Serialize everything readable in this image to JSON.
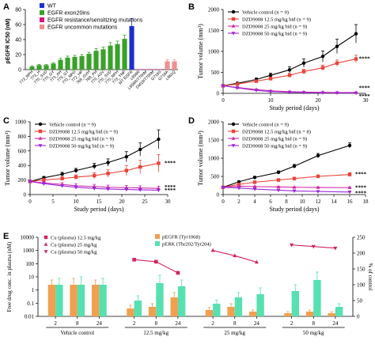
{
  "panel_labels": [
    "A",
    "B",
    "C",
    "D",
    "E"
  ],
  "colors": {
    "wt": "#1f2ecf",
    "exon20": "#3aa12a",
    "resistance": "#e0127a",
    "uncommon": "#f08f8f",
    "vehicle": "#000000",
    "dose12": "#e8443a",
    "dose25": "#d42aa8",
    "dose50": "#9b2ad6",
    "cu_plasma": "#f0a050",
    "perk": "#57e0b0",
    "pegfr_line": "#d0245a"
  },
  "chart_data": [
    {
      "panel": "A",
      "type": "bar",
      "ylabel": "pEGFR IC50 (nM)",
      "ylim": [
        0,
        80
      ],
      "yticks": [
        0,
        20,
        40,
        60,
        80
      ],
      "legend_position": "top-left",
      "legend": [
        {
          "name": "WT",
          "color": "#1f2ecf"
        },
        {
          "name": "EGFR exon20ins",
          "color": "#3aa12a"
        },
        {
          "name": "EGFR resistance/sensitizing mutations",
          "color": "#e0127a"
        },
        {
          "name": "EGFR uncommon mutations",
          "color": "#f08f8f"
        }
      ],
      "categories": [
        "773_NPH",
        "773_H",
        "770_SVD",
        "770_GY",
        "773_AH",
        "775_GT",
        "770_NPG",
        "772_HP",
        "769_GVH",
        "768_PH",
        "770_ASV",
        "770_SVD",
        "770_NPH",
        "773_YNP",
        "WT EGFR",
        "L858R",
        "L858R/T790M",
        "Del19/T790M",
        "G719S",
        "G719A",
        "L861Q"
      ],
      "values": [
        4,
        6,
        6,
        8,
        13,
        16,
        17,
        18,
        21,
        25,
        27,
        32,
        34,
        41,
        58,
        0.4,
        0.4,
        0.4,
        0.4,
        11,
        11
      ],
      "errors": [
        1,
        1,
        1,
        1,
        2,
        2,
        2,
        2,
        2,
        3,
        3,
        4,
        4,
        5,
        10,
        0.1,
        0.1,
        0.1,
        0.1,
        2,
        2
      ],
      "groups": [
        "exon20",
        "exon20",
        "exon20",
        "exon20",
        "exon20",
        "exon20",
        "exon20",
        "exon20",
        "exon20",
        "exon20",
        "exon20",
        "exon20",
        "exon20",
        "exon20",
        "wt",
        "resistance",
        "resistance",
        "resistance",
        "resistance",
        "uncommon",
        "uncommon"
      ]
    },
    {
      "panel": "B",
      "type": "line",
      "xlabel": "Study period (days)",
      "ylabel": "Tumor volume (mm³)",
      "xlim": [
        0,
        30
      ],
      "ylim": [
        0,
        2000
      ],
      "xticks": [
        0,
        10,
        20,
        30
      ],
      "yticks": [
        0,
        500,
        1000,
        1500,
        2000
      ],
      "legend_position": "top-left",
      "x": [
        0,
        3,
        7,
        10,
        14,
        17,
        21,
        24,
        28
      ],
      "series": [
        {
          "name": "Vehicle control   (n = 9)",
          "values": [
            180,
            240,
            330,
            430,
            560,
            720,
            880,
            1120,
            1420
          ],
          "errors": [
            15,
            25,
            35,
            50,
            70,
            100,
            130,
            170,
            220
          ],
          "marker": "circle",
          "color": "#000000"
        },
        {
          "name": "DZD9008 12.5 mg/kg bid (n = 9)",
          "values": [
            180,
            220,
            290,
            350,
            430,
            520,
            610,
            720,
            820
          ],
          "errors": [
            15,
            20,
            25,
            35,
            45,
            55,
            65,
            75,
            90
          ],
          "marker": "square",
          "color": "#e8443a"
        },
        {
          "name": "DZD9008 25 mg/kg bid (n = 9)",
          "values": [
            180,
            140,
            90,
            60,
            40,
            30,
            25,
            20,
            20
          ],
          "errors": [
            15,
            15,
            12,
            10,
            8,
            6,
            5,
            5,
            5
          ],
          "marker": "triangle-up",
          "color": "#d42aa8"
        },
        {
          "name": "DZD9008 50 mg/kg bid (n = 9)",
          "values": [
            180,
            130,
            70,
            40,
            25,
            18,
            12,
            10,
            8
          ],
          "errors": [
            15,
            15,
            10,
            8,
            6,
            5,
            4,
            3,
            3
          ],
          "marker": "triangle-down",
          "color": "#9b2ad6"
        }
      ],
      "annotations": [
        {
          "text": "****",
          "x": 28.6,
          "y": 820
        },
        {
          "text": "****",
          "x": 28.6,
          "y": 120
        },
        {
          "text": "****",
          "x": 28.6,
          "y": -100
        }
      ]
    },
    {
      "panel": "C",
      "type": "line",
      "xlabel": "Study period (days)",
      "ylabel": "Tumor volume (mm³)",
      "xlim": [
        0,
        30
      ],
      "ylim": [
        0,
        1000
      ],
      "xticks": [
        0,
        5,
        10,
        15,
        20,
        25,
        30
      ],
      "yticks": [
        0,
        200,
        400,
        600,
        800,
        1000
      ],
      "legend_position": "top-left",
      "x": [
        0,
        3,
        7,
        10,
        14,
        17,
        21,
        24,
        28
      ],
      "series": [
        {
          "name": "Vehicle control   (n = 9)",
          "values": [
            180,
            230,
            280,
            330,
            390,
            440,
            520,
            620,
            760
          ],
          "errors": [
            15,
            20,
            25,
            30,
            40,
            50,
            70,
            90,
            130
          ],
          "marker": "circle",
          "color": "#000000"
        },
        {
          "name": "DZD9008 12.5 mg/kg bid (n = 9)",
          "values": [
            180,
            200,
            220,
            240,
            260,
            290,
            330,
            380,
            430
          ],
          "errors": [
            15,
            20,
            25,
            30,
            40,
            50,
            70,
            90,
            120
          ],
          "marker": "square",
          "color": "#e8443a"
        },
        {
          "name": "DZD9008 25 mg/kg bid (n = 9)",
          "values": [
            180,
            160,
            140,
            120,
            110,
            100,
            95,
            90,
            85
          ],
          "errors": [
            15,
            20,
            25,
            30,
            30,
            30,
            30,
            30,
            30
          ],
          "marker": "triangle-up",
          "color": "#d42aa8"
        },
        {
          "name": "DZD9008 50 mg/kg bid (n = 9)",
          "values": [
            180,
            150,
            120,
            100,
            85,
            75,
            70,
            65,
            60
          ],
          "errors": [
            15,
            20,
            20,
            20,
            20,
            20,
            20,
            20,
            20
          ],
          "marker": "triangle-down",
          "color": "#9b2ad6"
        }
      ],
      "annotations": [
        {
          "text": "****",
          "x": 29.3,
          "y": 430
        },
        {
          "text": "****",
          "x": 29.3,
          "y": 100
        },
        {
          "text": "****",
          "x": 29.3,
          "y": 55
        }
      ]
    },
    {
      "panel": "D",
      "type": "line",
      "xlabel": "Study period (days)",
      "ylabel": "Tumor volume (mm³)",
      "xlim": [
        0,
        18
      ],
      "ylim": [
        0,
        2000
      ],
      "xticks": [
        0,
        2,
        4,
        6,
        8,
        10,
        12,
        14,
        16,
        18
      ],
      "yticks": [
        0,
        500,
        1000,
        1500,
        2000
      ],
      "legend_position": "top-left",
      "x": [
        0,
        2,
        4,
        7,
        9,
        12,
        16
      ],
      "series": [
        {
          "name": "Vehicle control   (n = 9)",
          "values": [
            200,
            350,
            470,
            610,
            780,
            1070,
            1350
          ],
          "errors": [
            15,
            25,
            30,
            40,
            50,
            60,
            70
          ],
          "marker": "circle",
          "color": "#000000"
        },
        {
          "name": "DZD9008 12.5 mg/kg bid (n = 8)",
          "values": [
            200,
            280,
            340,
            400,
            440,
            500,
            550
          ],
          "errors": [
            15,
            20,
            25,
            30,
            35,
            40,
            50
          ],
          "marker": "square",
          "color": "#e8443a"
        },
        {
          "name": "DZD9008 25 mg/kg bid (n = 9)",
          "values": [
            200,
            230,
            220,
            210,
            200,
            195,
            190
          ],
          "errors": [
            15,
            15,
            15,
            15,
            15,
            15,
            15
          ],
          "marker": "triangle-up",
          "color": "#d42aa8"
        },
        {
          "name": "DZD9008 50 mg/kg bid (n = 9)",
          "values": [
            200,
            180,
            150,
            120,
            100,
            85,
            70
          ],
          "errors": [
            15,
            15,
            12,
            10,
            10,
            10,
            10
          ],
          "marker": "triangle-down",
          "color": "#9b2ad6"
        }
      ],
      "annotations": [
        {
          "text": "****",
          "x": 16.7,
          "y": 550
        },
        {
          "text": "****",
          "x": 16.7,
          "y": 190
        },
        {
          "text": "****",
          "x": 16.7,
          "y": 30
        }
      ]
    },
    {
      "panel": "E",
      "type": "bar",
      "ylabel": "Free drug conc. in plasma (nM)",
      "ylabel_right": "% of control",
      "y_scale": "log",
      "ylim": [
        0.01,
        10000
      ],
      "yticks": [
        0.01,
        0.1,
        1,
        10,
        100,
        1000,
        10000
      ],
      "ytick_labels": [
        "0.01",
        "0.1",
        "1",
        "10",
        "100",
        "1000",
        "10000"
      ],
      "ylim_right": [
        0,
        250
      ],
      "yticks_right": [
        0,
        50,
        100,
        150,
        200,
        250
      ],
      "legend_position": "top-left",
      "legend": [
        {
          "name": "Cu (plasma) 12.5 mg/kg",
          "color": "#f0a050"
        },
        {
          "name": "Cu (plasma) 25 mg/kg",
          "color": "#f0a050"
        },
        {
          "name": "Cu (plasma) 50 mg/kg",
          "color": "#f0a050"
        },
        {
          "name": "pEGFR (Tyr1068)",
          "color": "#f0a050"
        },
        {
          "name": "pERK (Thr202/Tyr204)",
          "color": "#57e0b0"
        }
      ],
      "groups": [
        "Vehicle control",
        "12.5 mg/kg",
        "25 mg/kg",
        "50 mg/kg"
      ],
      "timepoints": [
        "2",
        "8",
        "24"
      ],
      "series": [
        {
          "name": "pEGFR (Tyr1068)",
          "axis": "right",
          "values": [
            [
              100,
              100,
              100
            ],
            [
              25,
              30,
              60
            ],
            [
              20,
              30,
              15
            ],
            [
              10,
              15,
              10
            ]
          ],
          "errors": [
            [
              15,
              20,
              15
            ],
            [
              10,
              10,
              15
            ],
            [
              8,
              10,
              5
            ],
            [
              5,
              5,
              5
            ]
          ],
          "color": "#f0a050"
        },
        {
          "name": "pERK (Thr202/Tyr204)",
          "axis": "right",
          "values": [
            [
              100,
              100,
              100
            ],
            [
              50,
              105,
              95
            ],
            [
              40,
              60,
              70
            ],
            [
              80,
              115,
              30
            ]
          ],
          "errors": [
            [
              20,
              25,
              20
            ],
            [
              15,
              25,
              20
            ],
            [
              12,
              15,
              20
            ],
            [
              20,
              25,
              10
            ]
          ],
          "color": "#57e0b0"
        },
        {
          "name": "Cu (plasma) 12.5 mg/kg",
          "axis": "left",
          "x_group": "12.5 mg/kg",
          "values": [
            200,
            140,
            20
          ],
          "marker": "square",
          "color": "#d0245a"
        },
        {
          "name": "Cu (plasma) 25 mg/kg",
          "axis": "left",
          "x_group": "25 mg/kg",
          "values": [
            1000,
            400,
            130
          ],
          "marker": "triangle-up",
          "color": "#d0245a"
        },
        {
          "name": "Cu (plasma) 50 mg/kg",
          "axis": "left",
          "x_group": "50 mg/kg",
          "values": [
            2600,
            2000,
            1500
          ],
          "marker": "triangle-down",
          "color": "#d0245a"
        }
      ]
    }
  ]
}
